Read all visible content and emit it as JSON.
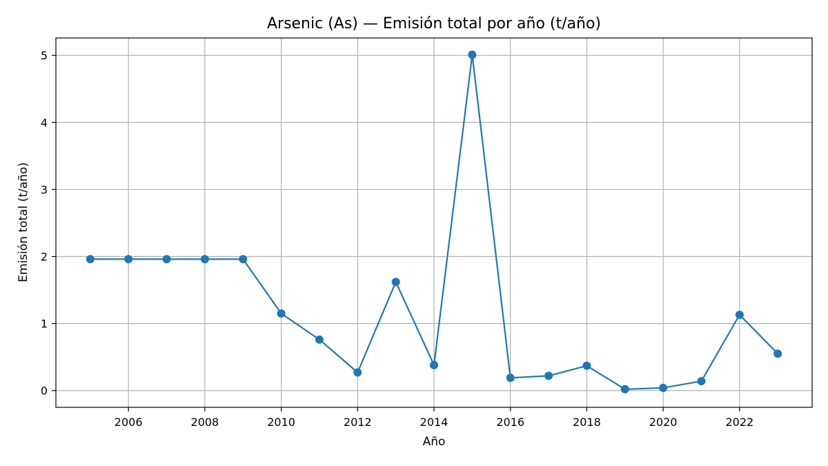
{
  "chart_data": {
    "type": "line",
    "title": "Arsenic (As) — Emisión total por año (t/año)",
    "xlabel": "Año",
    "ylabel": "Emisión total (t/año)",
    "x": [
      2005,
      2006,
      2007,
      2008,
      2009,
      2010,
      2011,
      2012,
      2013,
      2014,
      2015,
      2016,
      2017,
      2018,
      2019,
      2020,
      2021,
      2022,
      2023
    ],
    "series": [
      {
        "values": [
          1.96,
          1.96,
          1.96,
          1.96,
          1.96,
          1.15,
          0.76,
          0.27,
          1.62,
          0.38,
          5.01,
          0.19,
          0.22,
          0.37,
          0.02,
          0.04,
          0.14,
          1.13,
          0.55
        ],
        "color": "#1f77b4",
        "marker": "circle"
      }
    ],
    "xlim": [
      2004.1,
      2023.9
    ],
    "ylim": [
      -0.25,
      5.26
    ],
    "xticks": [
      "2006",
      "2008",
      "2010",
      "2012",
      "2014",
      "2016",
      "2018",
      "2020",
      "2022"
    ],
    "yticks": [
      "0",
      "1",
      "2",
      "3",
      "4",
      "5"
    ],
    "grid": true,
    "legend": "none"
  }
}
